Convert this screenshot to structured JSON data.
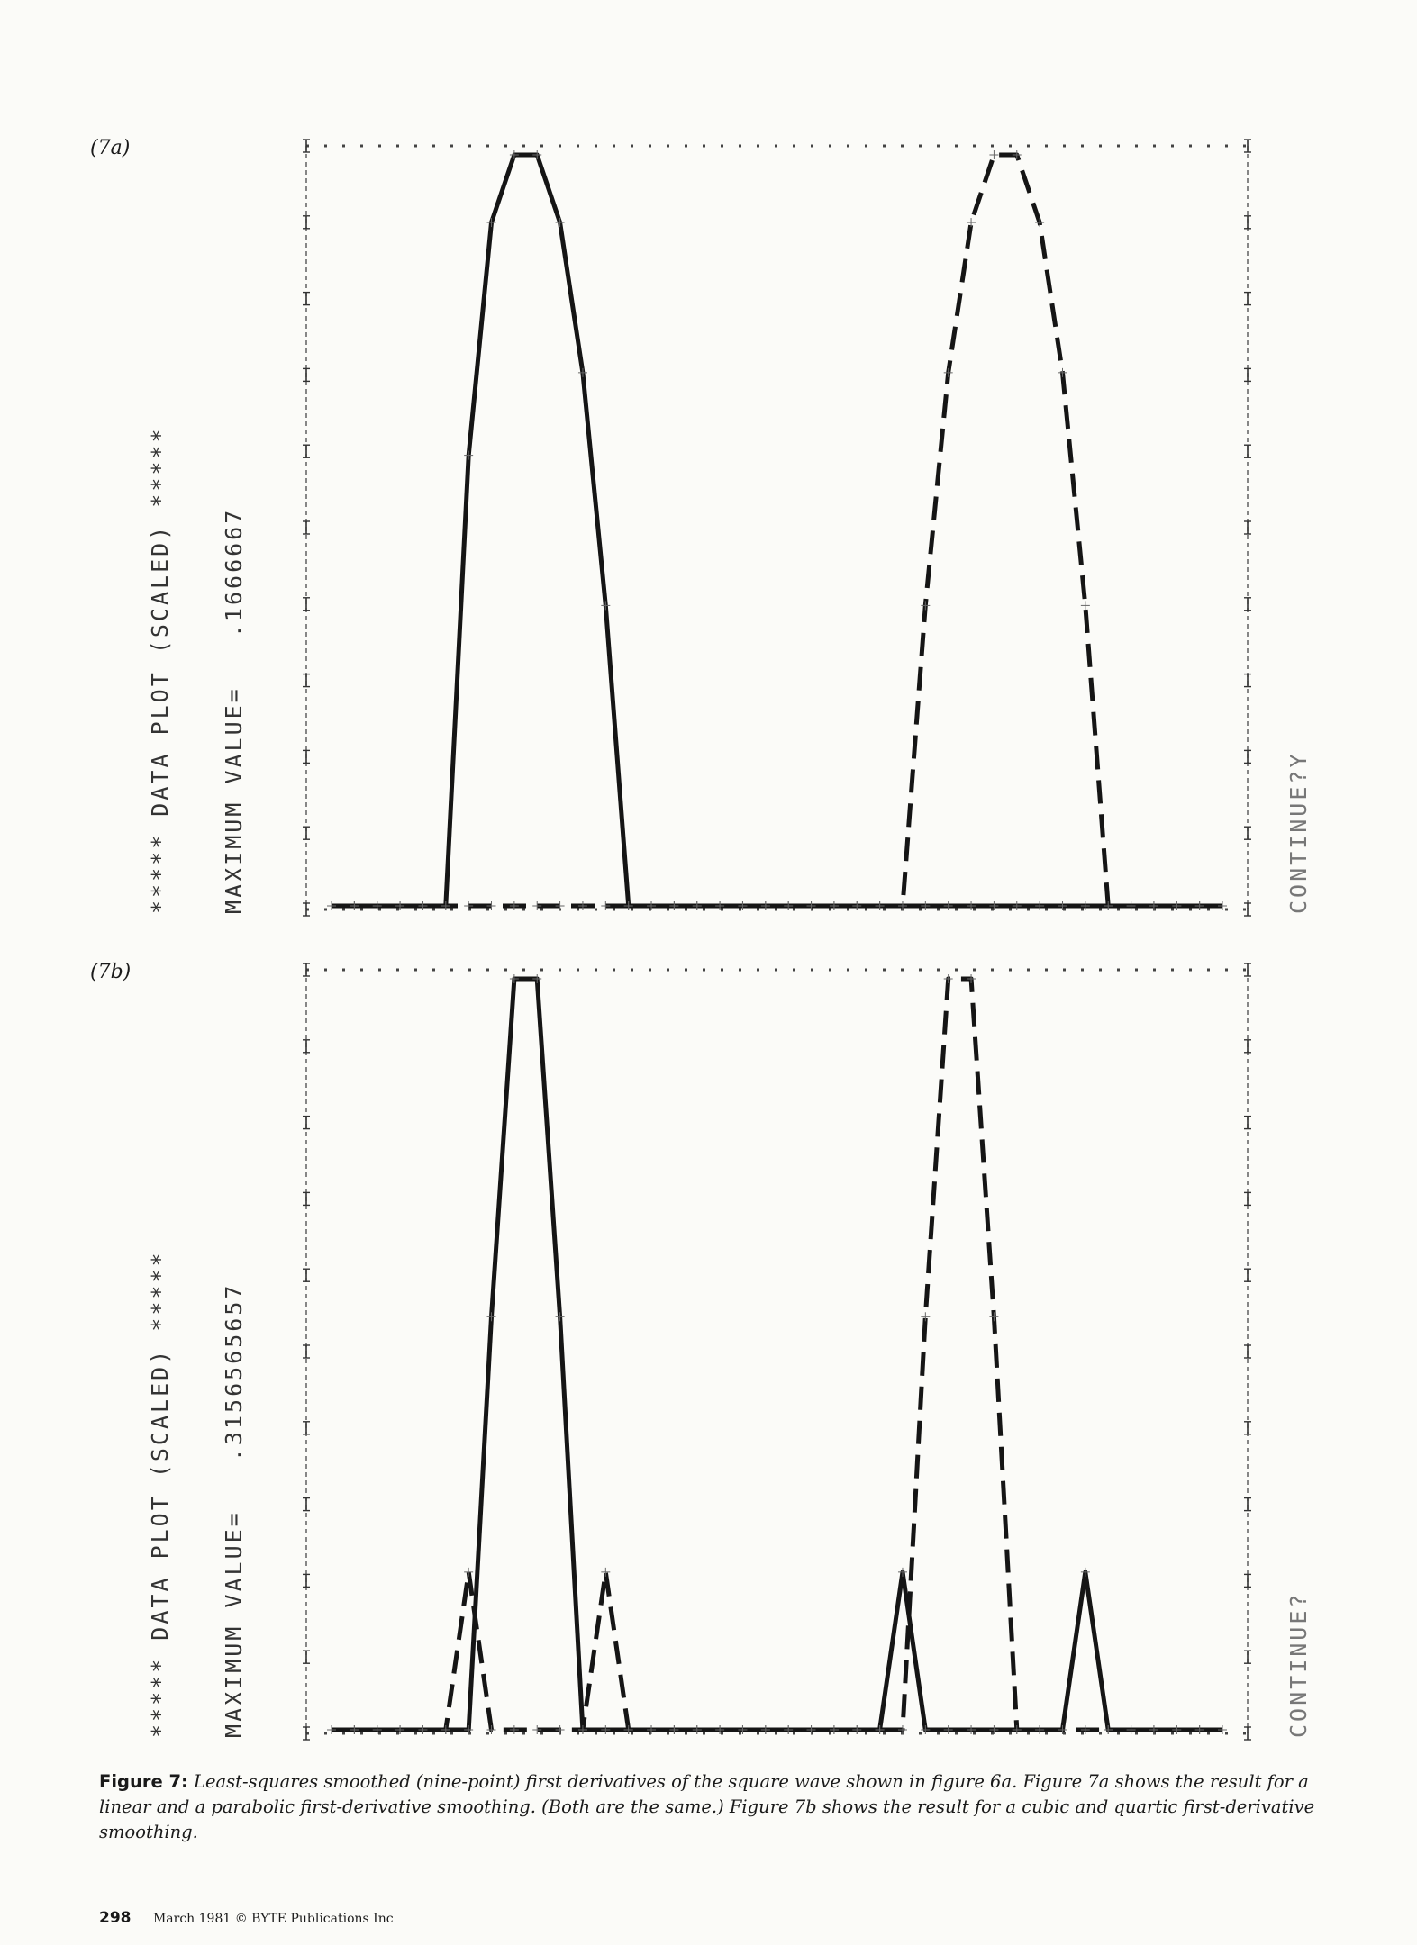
{
  "chart_data": [
    {
      "type": "line",
      "panel_label": "(7a)",
      "title": "***** DATA PLOT (SCALED) *****",
      "max_value_text": "MAXIMUM VALUE=   .1666667",
      "continue_text": "CONTINUE?Y",
      "x": [
        0,
        1,
        2,
        3,
        4,
        5,
        6,
        7,
        8,
        9,
        10,
        11,
        12,
        13,
        14,
        15,
        16,
        17,
        18,
        19,
        20,
        21,
        22,
        23,
        24,
        25,
        26,
        27,
        28,
        29,
        30,
        31,
        32,
        33,
        34,
        35,
        36,
        37,
        38,
        39
      ],
      "series": [
        {
          "style": "solid",
          "values": [
            0,
            0,
            0,
            0,
            0,
            0,
            0.6,
            0.91,
            1,
            1,
            0.91,
            0.71,
            0.4,
            0,
            0,
            0,
            0,
            0,
            0,
            0,
            0,
            0,
            0,
            0,
            0,
            0,
            0,
            0,
            0,
            0,
            0,
            0,
            0,
            0,
            0,
            0,
            0,
            0,
            0,
            0
          ]
        },
        {
          "style": "dashed",
          "values": [
            0,
            0,
            0,
            0,
            0,
            0,
            0,
            0,
            0,
            0,
            0,
            0,
            0,
            0,
            0,
            0,
            0,
            0,
            0,
            0,
            0,
            0,
            0,
            0,
            0,
            0,
            0.4,
            0.71,
            0.91,
            1,
            1,
            0.91,
            0.71,
            0.4,
            0,
            0,
            0,
            0,
            0,
            0
          ]
        }
      ],
      "ylim": [
        0,
        1
      ],
      "grid": true
    },
    {
      "type": "line",
      "panel_label": "(7b)",
      "title": "***** DATA PLOT (SCALED) *****",
      "max_value_text": "MAXIMUM VALUE=   .3156565657",
      "continue_text": "CONTINUE?",
      "x": [
        0,
        1,
        2,
        3,
        4,
        5,
        6,
        7,
        8,
        9,
        10,
        11,
        12,
        13,
        14,
        15,
        16,
        17,
        18,
        19,
        20,
        21,
        22,
        23,
        24,
        25,
        26,
        27,
        28,
        29,
        30,
        31,
        32,
        33,
        34,
        35,
        36,
        37,
        38,
        39
      ],
      "series": [
        {
          "style": "solid",
          "values": [
            0,
            0,
            0,
            0,
            0,
            0,
            0,
            0.55,
            1,
            1,
            0.55,
            0,
            0,
            0,
            0,
            0,
            0,
            0,
            0,
            0,
            0,
            0,
            0,
            0,
            0,
            0.21,
            0,
            0,
            0,
            0,
            0,
            0,
            0,
            0.21,
            0,
            0,
            0,
            0,
            0,
            0
          ]
        },
        {
          "style": "dashed",
          "values": [
            0,
            0,
            0,
            0,
            0,
            0,
            0.21,
            0,
            0,
            0,
            0,
            0,
            0.21,
            0,
            0,
            0,
            0,
            0,
            0,
            0,
            0,
            0,
            0,
            0,
            0,
            0,
            0.55,
            1,
            1,
            0.55,
            0,
            0,
            0,
            0,
            0,
            0,
            0,
            0,
            0,
            0
          ]
        }
      ],
      "ylim": [
        0,
        1
      ],
      "grid": true
    }
  ],
  "caption": {
    "label": "Figure 7:",
    "text": "Least-squares smoothed (nine-point) first derivatives of the square wave shown in figure 6a. Figure 7a shows the result for a linear and a parabolic first-derivative smoothing. (Both are the same.) Figure 7b shows the result for a cubic and quartic first-derivative smoothing."
  },
  "footer": {
    "page_number": "298",
    "text": "March 1981 © BYTE Publications Inc"
  }
}
